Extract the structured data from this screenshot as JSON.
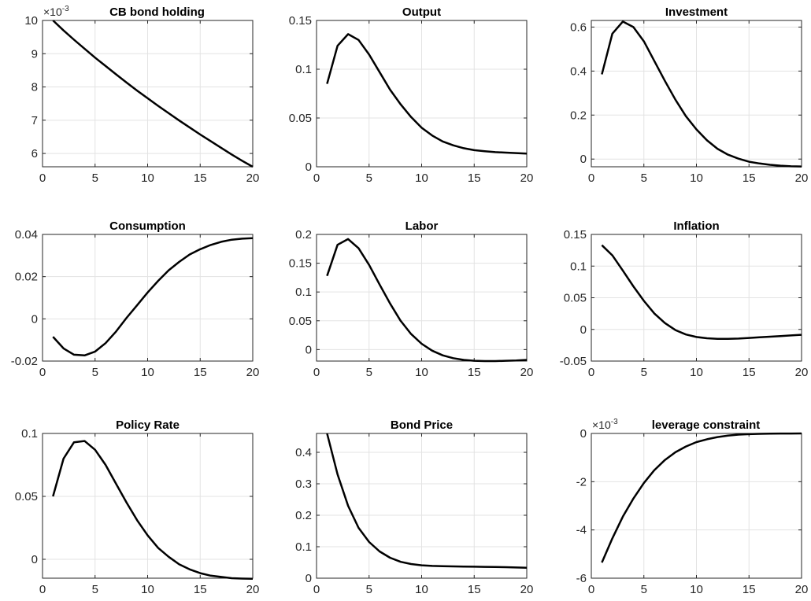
{
  "chart_data": [
    {
      "type": "line",
      "title": "CB bond holding",
      "exponent": {
        "base": "×10",
        "power": "-3"
      },
      "xlim": [
        0,
        20
      ],
      "ylim": [
        5.6,
        10
      ],
      "xticks": [
        0,
        5,
        10,
        15,
        20
      ],
      "xtick_labels": [
        "0",
        "5",
        "10",
        "15",
        "20"
      ],
      "yticks": [
        6,
        7,
        8,
        9,
        10
      ],
      "ytick_labels": [
        "6",
        "7",
        "8",
        "9",
        "10"
      ],
      "grid": true,
      "series": [
        {
          "x": [
            1,
            2,
            3,
            4,
            5,
            6,
            7,
            8,
            9,
            10,
            11,
            12,
            13,
            14,
            15,
            16,
            17,
            18,
            19,
            20
          ],
          "values": [
            10.0,
            9.7,
            9.42,
            9.15,
            8.88,
            8.63,
            8.38,
            8.13,
            7.89,
            7.66,
            7.43,
            7.21,
            6.99,
            6.78,
            6.57,
            6.37,
            6.17,
            5.97,
            5.78,
            5.6
          ]
        }
      ]
    },
    {
      "type": "line",
      "title": "Output",
      "xlim": [
        0,
        20
      ],
      "ylim": [
        0,
        0.15
      ],
      "xticks": [
        0,
        5,
        10,
        15,
        20
      ],
      "xtick_labels": [
        "0",
        "5",
        "10",
        "15",
        "20"
      ],
      "yticks": [
        0,
        0.05,
        0.1,
        0.15
      ],
      "ytick_labels": [
        "0",
        "0.05",
        "0.1",
        "0.15"
      ],
      "grid": true,
      "series": [
        {
          "x": [
            1,
            2,
            3,
            4,
            5,
            6,
            7,
            8,
            9,
            10,
            11,
            12,
            13,
            14,
            15,
            16,
            17,
            18,
            19,
            20
          ],
          "values": [
            0.085,
            0.124,
            0.136,
            0.13,
            0.115,
            0.097,
            0.079,
            0.064,
            0.051,
            0.04,
            0.032,
            0.026,
            0.022,
            0.019,
            0.017,
            0.016,
            0.015,
            0.0145,
            0.014,
            0.0135
          ]
        }
      ]
    },
    {
      "type": "line",
      "title": "Investment",
      "xlim": [
        0,
        20
      ],
      "ylim": [
        -0.035,
        0.63
      ],
      "xticks": [
        0,
        5,
        10,
        15,
        20
      ],
      "xtick_labels": [
        "0",
        "5",
        "10",
        "15",
        "20"
      ],
      "yticks": [
        0,
        0.2,
        0.4,
        0.6
      ],
      "ytick_labels": [
        "0",
        "0.2",
        "0.4",
        "0.6"
      ],
      "grid": true,
      "series": [
        {
          "x": [
            1,
            2,
            3,
            4,
            5,
            6,
            7,
            8,
            9,
            10,
            11,
            12,
            13,
            14,
            15,
            16,
            17,
            18,
            19,
            20
          ],
          "values": [
            0.385,
            0.57,
            0.625,
            0.6,
            0.535,
            0.445,
            0.355,
            0.27,
            0.195,
            0.135,
            0.085,
            0.047,
            0.02,
            0.002,
            -0.012,
            -0.02,
            -0.026,
            -0.03,
            -0.033,
            -0.034
          ]
        }
      ]
    },
    {
      "type": "line",
      "title": "Consumption",
      "xlim": [
        0,
        20
      ],
      "ylim": [
        -0.02,
        0.04
      ],
      "xticks": [
        0,
        5,
        10,
        15,
        20
      ],
      "xtick_labels": [
        "0",
        "5",
        "10",
        "15",
        "20"
      ],
      "yticks": [
        -0.02,
        0,
        0.02,
        0.04
      ],
      "ytick_labels": [
        "-0.02",
        "0",
        "0.02",
        "0.04"
      ],
      "grid": true,
      "series": [
        {
          "x": [
            1,
            2,
            3,
            4,
            5,
            6,
            7,
            8,
            9,
            10,
            11,
            12,
            13,
            14,
            15,
            16,
            17,
            18,
            19,
            20
          ],
          "values": [
            -0.0085,
            -0.014,
            -0.017,
            -0.0173,
            -0.0155,
            -0.0115,
            -0.006,
            0.0005,
            0.0065,
            0.0125,
            0.018,
            0.023,
            0.027,
            0.0305,
            0.033,
            0.035,
            0.0365,
            0.0375,
            0.038,
            0.0382
          ]
        }
      ]
    },
    {
      "type": "line",
      "title": "Labor",
      "xlim": [
        0,
        20
      ],
      "ylim": [
        -0.02,
        0.2
      ],
      "xticks": [
        0,
        5,
        10,
        15,
        20
      ],
      "xtick_labels": [
        "0",
        "5",
        "10",
        "15",
        "20"
      ],
      "yticks": [
        0,
        0.05,
        0.1,
        0.15,
        0.2
      ],
      "ytick_labels": [
        "0",
        "0.05",
        "0.1",
        "0.15",
        "0.2"
      ],
      "grid": true,
      "series": [
        {
          "x": [
            1,
            2,
            3,
            4,
            5,
            6,
            7,
            8,
            9,
            10,
            11,
            12,
            13,
            14,
            15,
            16,
            17,
            18,
            19,
            20
          ],
          "values": [
            0.128,
            0.182,
            0.192,
            0.176,
            0.147,
            0.113,
            0.08,
            0.05,
            0.027,
            0.01,
            -0.002,
            -0.01,
            -0.015,
            -0.018,
            -0.0195,
            -0.02,
            -0.02,
            -0.0195,
            -0.019,
            -0.018
          ]
        }
      ]
    },
    {
      "type": "line",
      "title": "Inflation",
      "xlim": [
        0,
        20
      ],
      "ylim": [
        -0.05,
        0.15
      ],
      "xticks": [
        0,
        5,
        10,
        15,
        20
      ],
      "xtick_labels": [
        "0",
        "5",
        "10",
        "15",
        "20"
      ],
      "yticks": [
        -0.05,
        0,
        0.05,
        0.1,
        0.15
      ],
      "ytick_labels": [
        "-0.05",
        "0",
        "0.05",
        "0.1",
        "0.15"
      ],
      "grid": true,
      "series": [
        {
          "x": [
            1,
            2,
            3,
            4,
            5,
            6,
            7,
            8,
            9,
            10,
            11,
            12,
            13,
            14,
            15,
            16,
            17,
            18,
            19,
            20
          ],
          "values": [
            0.133,
            0.117,
            0.093,
            0.068,
            0.045,
            0.025,
            0.01,
            -0.001,
            -0.008,
            -0.012,
            -0.014,
            -0.015,
            -0.015,
            -0.0145,
            -0.0135,
            -0.0125,
            -0.0115,
            -0.0105,
            -0.0095,
            -0.0085
          ]
        }
      ]
    },
    {
      "type": "line",
      "title": "Policy Rate",
      "xlim": [
        0,
        20
      ],
      "ylim": [
        -0.015,
        0.1
      ],
      "xticks": [
        0,
        5,
        10,
        15,
        20
      ],
      "xtick_labels": [
        "0",
        "5",
        "10",
        "15",
        "20"
      ],
      "yticks": [
        0,
        0.05,
        0.1
      ],
      "ytick_labels": [
        "0",
        "0.05",
        "0.1"
      ],
      "grid": true,
      "series": [
        {
          "x": [
            1,
            2,
            3,
            4,
            5,
            6,
            7,
            8,
            9,
            10,
            11,
            12,
            13,
            14,
            15,
            16,
            17,
            18,
            19,
            20
          ],
          "values": [
            0.05,
            0.08,
            0.093,
            0.094,
            0.087,
            0.075,
            0.06,
            0.045,
            0.031,
            0.019,
            0.009,
            0.002,
            -0.004,
            -0.008,
            -0.011,
            -0.013,
            -0.014,
            -0.015,
            -0.0153,
            -0.0155
          ]
        }
      ]
    },
    {
      "type": "line",
      "title": "Bond Price",
      "xlim": [
        0,
        20
      ],
      "ylim": [
        0,
        0.46
      ],
      "xticks": [
        0,
        5,
        10,
        15,
        20
      ],
      "xtick_labels": [
        "0",
        "5",
        "10",
        "15",
        "20"
      ],
      "yticks": [
        0,
        0.1,
        0.2,
        0.3,
        0.4
      ],
      "ytick_labels": [
        "0",
        "0.1",
        "0.2",
        "0.3",
        "0.4"
      ],
      "grid": true,
      "series": [
        {
          "x": [
            1,
            2,
            3,
            4,
            5,
            6,
            7,
            8,
            9,
            10,
            11,
            12,
            13,
            14,
            15,
            16,
            17,
            18,
            19,
            20
          ],
          "values": [
            0.46,
            0.33,
            0.23,
            0.16,
            0.115,
            0.085,
            0.065,
            0.052,
            0.045,
            0.041,
            0.039,
            0.038,
            0.0375,
            0.037,
            0.0365,
            0.036,
            0.0355,
            0.035,
            0.034,
            0.033
          ]
        }
      ]
    },
    {
      "type": "line",
      "title": "leverage constraint",
      "exponent": {
        "base": "×10",
        "power": "-3"
      },
      "xlim": [
        0,
        20
      ],
      "ylim": [
        -6,
        0
      ],
      "xticks": [
        0,
        5,
        10,
        15,
        20
      ],
      "xtick_labels": [
        "0",
        "5",
        "10",
        "15",
        "20"
      ],
      "yticks": [
        -6,
        -4,
        -2,
        0
      ],
      "ytick_labels": [
        "-6",
        "-4",
        "-2",
        "0"
      ],
      "grid": true,
      "series": [
        {
          "x": [
            1,
            2,
            3,
            4,
            5,
            6,
            7,
            8,
            9,
            10,
            11,
            12,
            13,
            14,
            15,
            16,
            17,
            18,
            19,
            20
          ],
          "values": [
            -5.35,
            -4.35,
            -3.45,
            -2.7,
            -2.05,
            -1.52,
            -1.1,
            -0.78,
            -0.54,
            -0.36,
            -0.24,
            -0.15,
            -0.09,
            -0.05,
            -0.03,
            -0.015,
            -0.008,
            -0.004,
            -0.002,
            -0.001
          ]
        }
      ]
    }
  ]
}
